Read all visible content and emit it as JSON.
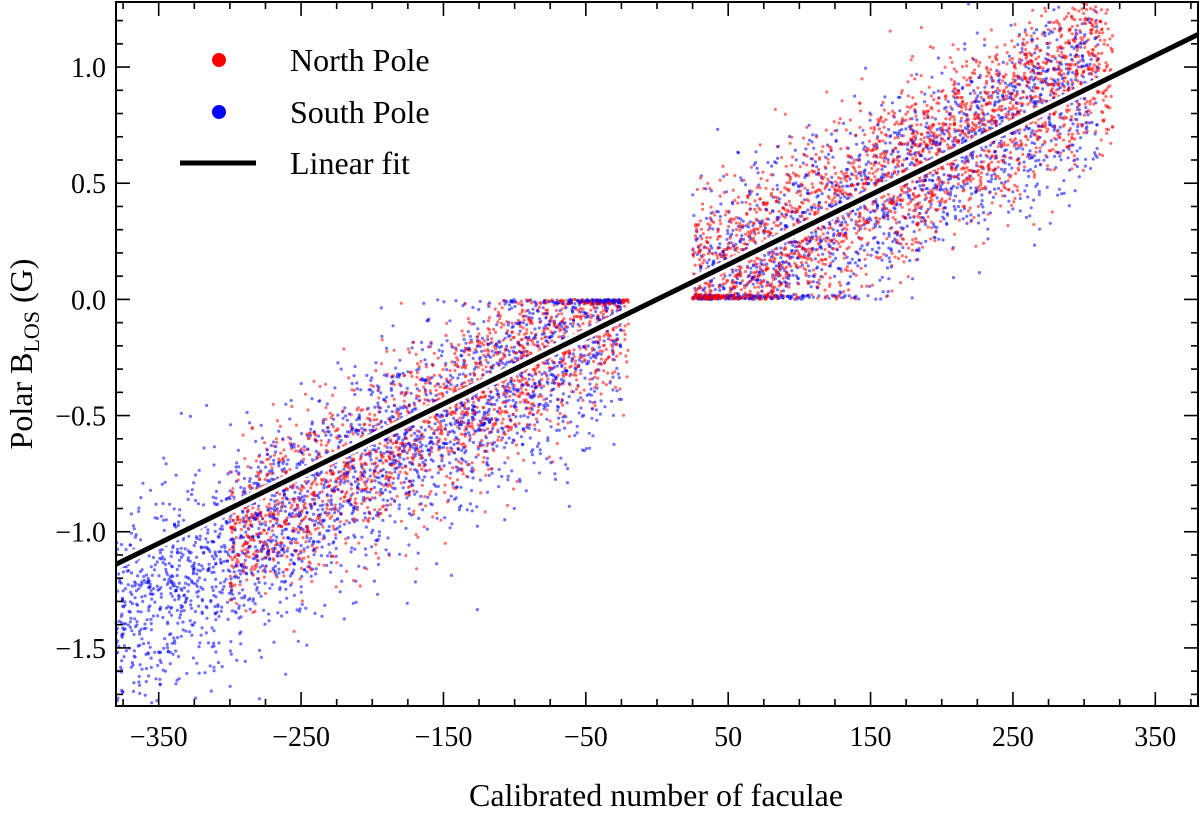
{
  "chart_data": {
    "type": "scatter",
    "title": "",
    "xlabel": "Calibrated number of faculae",
    "ylabel": {
      "prefix": "Polar  B",
      "subscript": "LOS",
      "suffix": " (G)"
    },
    "xlim": [
      -380,
      380
    ],
    "ylim": [
      -1.75,
      1.28
    ],
    "xticks": [
      -350,
      -250,
      -150,
      -50,
      50,
      150,
      250,
      350
    ],
    "xtick_labels": [
      "−350",
      "−250",
      "−150",
      "−50",
      "50",
      "150",
      "250",
      "350"
    ],
    "yticks": [
      -1.5,
      -1.0,
      -0.5,
      0.0,
      0.5,
      1.0
    ],
    "ytick_labels": [
      "−1.5",
      "−1.0",
      "−0.5",
      "0.0",
      "0.5",
      "1.0"
    ],
    "grid": false,
    "legend_position": "top-left",
    "series": [
      {
        "name": "North Pole",
        "color": "#ff0000",
        "clusters": [
          {
            "x_range": [
              25,
              320
            ],
            "intercept": -0.05,
            "slope": 0.0035,
            "spread": 0.18,
            "floor": 0.0,
            "weight": 0.56
          },
          {
            "x_range": [
              -300,
              -20
            ],
            "intercept": 0.05,
            "slope": 0.0036,
            "spread": 0.17,
            "ceiling": 0.0,
            "weight": 0.44
          }
        ]
      },
      {
        "name": "South Pole",
        "color": "#0000ff",
        "clusters": [
          {
            "x_range": [
              25,
              310
            ],
            "intercept": -0.07,
            "slope": 0.0033,
            "spread": 0.2,
            "floor": 0.0,
            "weight": 0.4
          },
          {
            "x_range": [
              -380,
              -25
            ],
            "intercept": 0.02,
            "slope": 0.0037,
            "spread": 0.22,
            "ceiling": 0.0,
            "weight": 0.6
          }
        ]
      },
      {
        "name": "Linear fit",
        "type": "line",
        "color": "#000000",
        "slope": 0.003,
        "intercept": 0.0
      }
    ]
  }
}
